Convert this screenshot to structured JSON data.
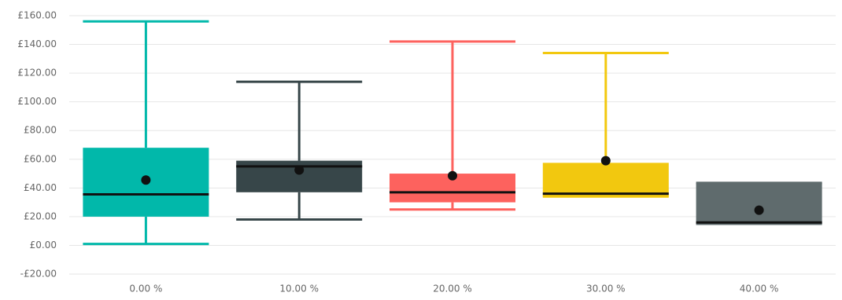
{
  "chart_data": {
    "type": "box",
    "categories": [
      "0.00 %",
      "10.00 %",
      "20.00 %",
      "30.00 %",
      "40.00 %"
    ],
    "boxes": [
      {
        "min": 1,
        "q1": 20,
        "median": 35.5,
        "q3": 68,
        "max": 156,
        "mean": 45.5,
        "color": "#01b8aa"
      },
      {
        "min": 18,
        "q1": 37,
        "median": 55,
        "q3": 59,
        "max": 114,
        "mean": 52.5,
        "color": "#374649"
      },
      {
        "min": 25,
        "q1": 30,
        "median": 37,
        "q3": 50,
        "max": 142,
        "mean": 48.5,
        "color": "#fd625e"
      },
      {
        "min": 34,
        "q1": 34,
        "median": 36,
        "q3": 57.5,
        "max": 134,
        "mean": 59,
        "color": "#f2c80f"
      },
      {
        "min": 15,
        "q1": 15,
        "median": 16,
        "q3": 43.5,
        "max": 43.5,
        "mean": 24.5,
        "color": "#5f6b6d"
      }
    ],
    "mean_color": "#111111",
    "median_color": "#111111",
    "ylim": [
      -20,
      160
    ],
    "yticks": [
      {
        "value": -20,
        "label": "-£20.00"
      },
      {
        "value": 0,
        "label": "£0.00"
      },
      {
        "value": 20,
        "label": "£20.00"
      },
      {
        "value": 40,
        "label": "£40.00"
      },
      {
        "value": 60,
        "label": "£60.00"
      },
      {
        "value": 80,
        "label": "£80.00"
      },
      {
        "value": 100,
        "label": "£100.00"
      },
      {
        "value": 120,
        "label": "£120.00"
      },
      {
        "value": 140,
        "label": "£140.00"
      },
      {
        "value": 160,
        "label": "£160.00"
      }
    ],
    "grid": true
  }
}
